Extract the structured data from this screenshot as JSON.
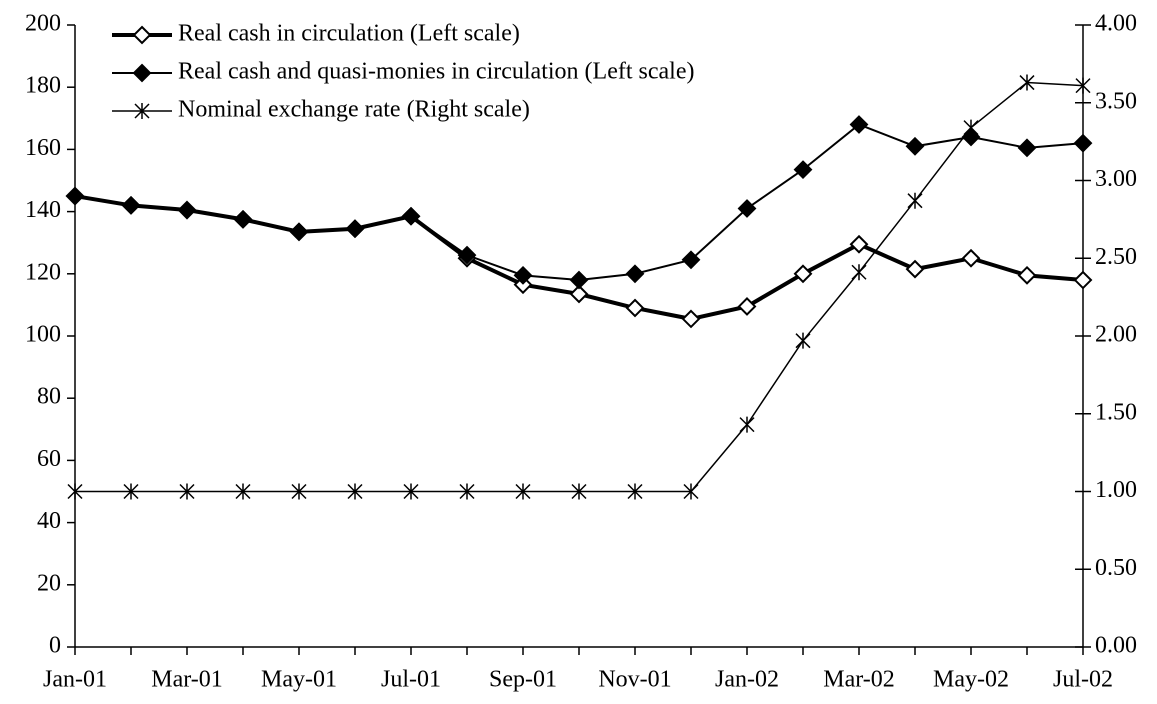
{
  "chart_data": {
    "type": "line",
    "categories": [
      "Jan-01",
      null,
      "Mar-01",
      null,
      "May-01",
      null,
      "Jul-01",
      null,
      "Sep-01",
      null,
      "Nov-01",
      null,
      "Jan-02",
      null,
      "Mar-02",
      null,
      "May-02",
      null,
      "Jul-02"
    ],
    "series": [
      {
        "name": "Real cash in circulation (Left scale)",
        "color": "#000000",
        "marker": "hollow-diamond",
        "values": [
          145,
          142,
          140.5,
          137.5,
          133.5,
          134.5,
          138.5,
          125,
          116.5,
          113.5,
          109,
          105.5,
          109.5,
          120,
          129.5,
          121.5,
          125,
          119.5,
          118
        ]
      },
      {
        "name": "Real cash and quasi-monies in circulation (Left scale)",
        "color": "#000000",
        "marker": "filled-diamond",
        "values": [
          145,
          142,
          140.5,
          137.5,
          133.5,
          134.5,
          138.5,
          126,
          119.5,
          118,
          120,
          124.5,
          141,
          153.5,
          168,
          161,
          164,
          160.5,
          162
        ]
      },
      {
        "name": "Nominal exchange rate (Right scale)",
        "color": "#000000",
        "marker": "asterisk",
        "axis": "y2",
        "values": [
          1.0,
          1.0,
          1.0,
          1.0,
          1.0,
          1.0,
          1.0,
          1.0,
          1.0,
          1.0,
          1.0,
          1.0,
          1.43,
          1.97,
          2.41,
          2.87,
          3.34,
          3.63,
          3.61
        ]
      }
    ],
    "ylim": [
      0,
      200
    ],
    "yticks": [
      0,
      20,
      40,
      60,
      80,
      100,
      120,
      140,
      160,
      180,
      200
    ],
    "y2lim": [
      0,
      4
    ],
    "y2ticks": [
      {
        "value": 0,
        "label": "0.00"
      },
      {
        "value": 0.5,
        "label": "0.50"
      },
      {
        "value": 1,
        "label": "1.00"
      },
      {
        "value": 1.5,
        "label": "1.50"
      },
      {
        "value": 2,
        "label": "2.00"
      },
      {
        "value": 2.5,
        "label": "2.50"
      },
      {
        "value": 3,
        "label": "3.00"
      },
      {
        "value": 3.5,
        "label": "3.50"
      },
      {
        "value": 4,
        "label": "4.00"
      }
    ],
    "legend": "upper left",
    "grid": false
  }
}
